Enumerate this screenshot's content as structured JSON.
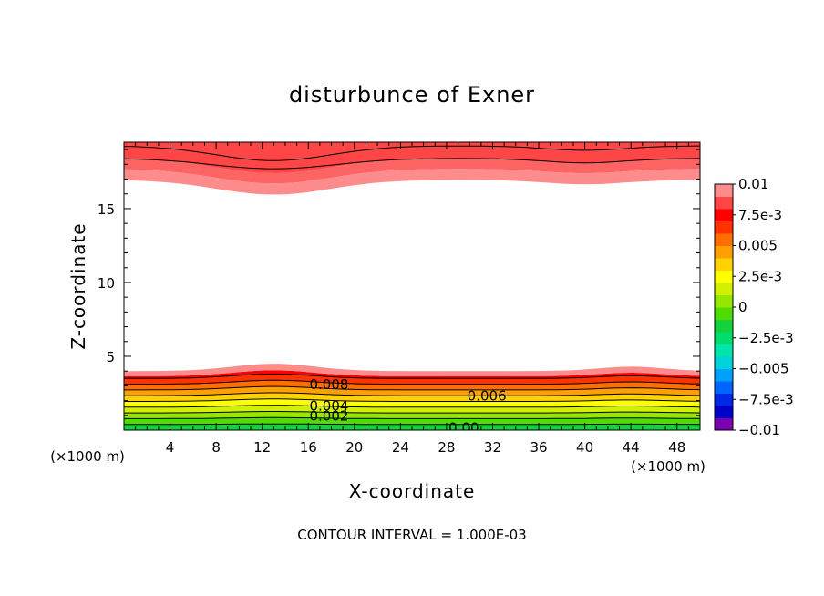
{
  "chart_data": {
    "type": "heatmap",
    "title": "disturbunce of Exner",
    "xlabel": "X-coordinate",
    "ylabel": "Z-coordinate",
    "x_unit_left": "(×1000 m)",
    "x_unit_right": "(×1000 m)",
    "xlim": [
      0,
      50
    ],
    "ylim": [
      0,
      19.5
    ],
    "x_ticks": [
      4,
      8,
      12,
      16,
      20,
      24,
      28,
      32,
      36,
      40,
      44,
      48
    ],
    "y_ticks": [
      5,
      10,
      15
    ],
    "footnote": "CONTOUR INTERVAL = 1.000E-03",
    "colorbar": {
      "range": [
        -0.01,
        0.01
      ],
      "tick_labels": [
        "0.01",
        "7.5e-3",
        "0.005",
        "2.5e-3",
        "0",
        "−2.5e-3",
        "−0.005",
        "−7.5e-3",
        "−0.01"
      ],
      "colors": [
        "#7a00b0",
        "#0000c8",
        "#0028e6",
        "#0064ff",
        "#00a0ff",
        "#00d2dc",
        "#00e6aa",
        "#00dc6e",
        "#14d23c",
        "#50dc00",
        "#96e600",
        "#d2f000",
        "#ffff00",
        "#ffd200",
        "#ffa000",
        "#ff6e00",
        "#ff3200",
        "#ff0000",
        "#ff4646",
        "#ff8c8c"
      ]
    },
    "contour_labels": [
      {
        "text": "0.008",
        "x": 17.8,
        "z": 3.1
      },
      {
        "text": "0.006",
        "x": 31.5,
        "z": 2.3
      },
      {
        "text": "0.004",
        "x": 17.8,
        "z": 1.65
      },
      {
        "text": "0.002",
        "x": 17.8,
        "z": 0.95
      },
      {
        "text": "0.00",
        "x": 29.5,
        "z": 0.15
      }
    ]
  }
}
